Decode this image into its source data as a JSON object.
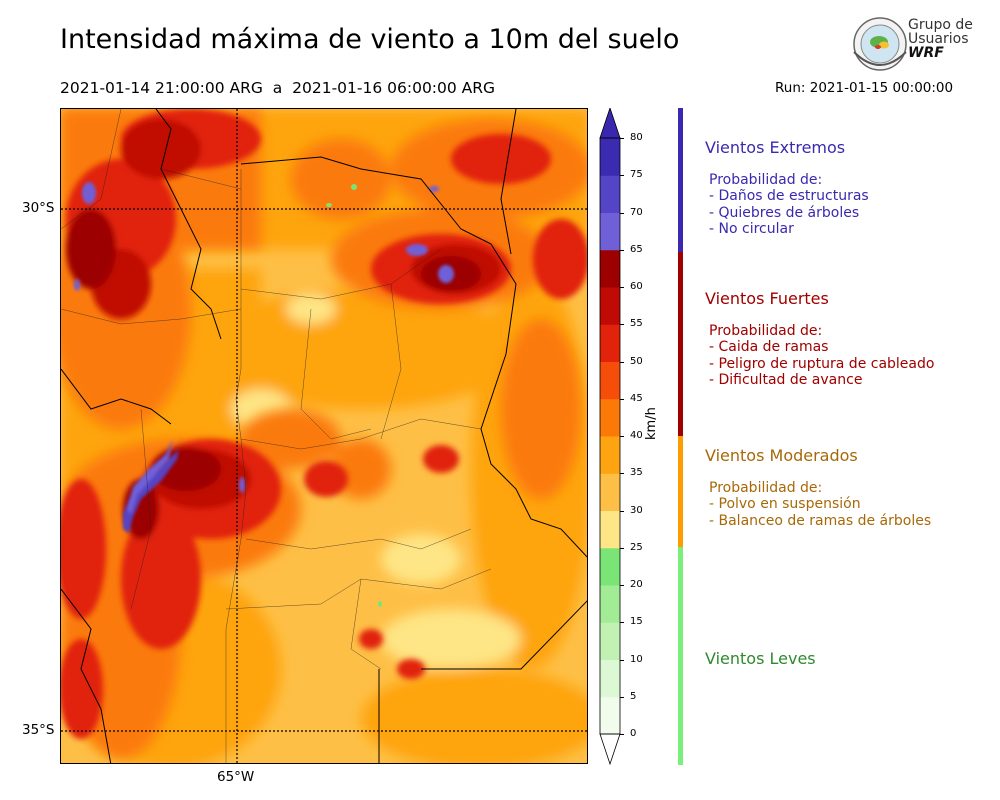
{
  "header": {
    "title": "Intensidad máxima de viento a 10m del suelo",
    "period": "2021-01-14 21:00:00 ARG  a  2021-01-16 06:00:00 ARG",
    "run": "Run: 2021-01-15 00:00:00"
  },
  "logo": {
    "line1": "Grupo de",
    "line2": "Usuarios",
    "line3": "WRF"
  },
  "map": {
    "lat_labels": [
      "30°S",
      "35°S"
    ],
    "lon_labels": [
      "65°W"
    ]
  },
  "colorbar": {
    "unit": "km/h",
    "ticks": [
      "80",
      "75",
      "70",
      "65",
      "60",
      "55",
      "50",
      "45",
      "40",
      "35",
      "30",
      "25",
      "20",
      "15",
      "10",
      "5",
      "0"
    ],
    "levels": [
      {
        "from": 0,
        "to": 5,
        "color": "#f1fcec"
      },
      {
        "from": 5,
        "to": 10,
        "color": "#dcf8d4"
      },
      {
        "from": 10,
        "to": 15,
        "color": "#c1f2b4"
      },
      {
        "from": 15,
        "to": 20,
        "color": "#a2ec96"
      },
      {
        "from": 20,
        "to": 25,
        "color": "#7ae576"
      },
      {
        "from": 25,
        "to": 30,
        "color": "#fee585"
      },
      {
        "from": 30,
        "to": 35,
        "color": "#febf46"
      },
      {
        "from": 35,
        "to": 40,
        "color": "#fea411"
      },
      {
        "from": 40,
        "to": 45,
        "color": "#fb7a07"
      },
      {
        "from": 45,
        "to": 50,
        "color": "#f54e0a"
      },
      {
        "from": 50,
        "to": 55,
        "color": "#e1230c"
      },
      {
        "from": 55,
        "to": 60,
        "color": "#c00a06"
      },
      {
        "from": 60,
        "to": 65,
        "color": "#9c0000"
      },
      {
        "from": 65,
        "to": 70,
        "color": "#7060d8"
      },
      {
        "from": 70,
        "to": 75,
        "color": "#5444c6"
      },
      {
        "from": 75,
        "to": 80,
        "color": "#3b2bb0"
      }
    ],
    "extend_max_color": "#3a27b0"
  },
  "categories": [
    {
      "title": "Vientos Extremos",
      "color": "#3a29b0",
      "body_title": "Probabilidad de:",
      "items": [
        "- Daños de estructuras",
        "- Quiebres de árboles",
        "- No circular"
      ]
    },
    {
      "title": "Vientos Fuertes",
      "color": "#a00000",
      "body_title": "Probabilidad de:",
      "items": [
        "- Caida de ramas",
        "- Peligro de ruptura de cableado",
        "- Dificultad de avance"
      ]
    },
    {
      "title": "Vientos Moderados",
      "color": "#a86808",
      "body_title": "Probabilidad de:",
      "items": [
        "- Polvo en suspensión",
        "- Balanceo de ramas de árboles"
      ]
    },
    {
      "title": "Vientos Leves",
      "color": "#2e8a2e",
      "body_title": "",
      "items": []
    }
  ],
  "band_colors": {
    "extreme": "#3a29b0",
    "strong": "#a00000",
    "moderate": "#fe9d00",
    "light": "#7af07a"
  }
}
